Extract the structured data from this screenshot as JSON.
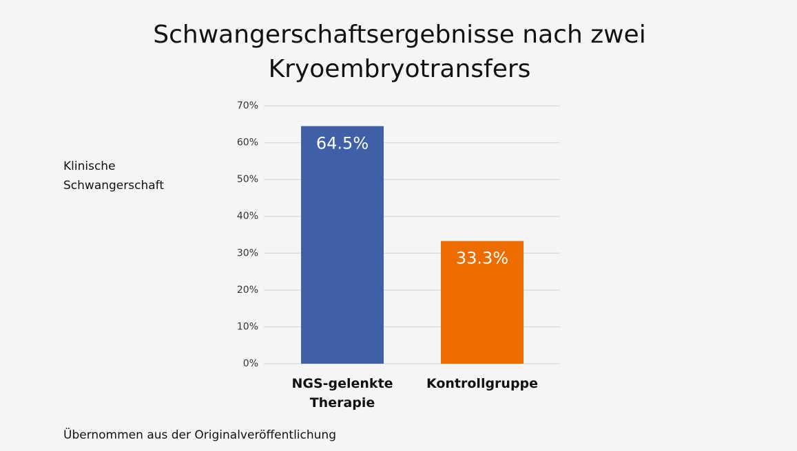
{
  "chart_data": {
    "type": "bar",
    "title": "Schwangerschaftsergebnisse nach zwei Kryoembryotransfers",
    "y_label": "Klinische Schwangerschaft",
    "source": "Übernommen aus der Originalveröffentlichung",
    "categories": [
      "NGS-gelenkte Therapie",
      "Kontrollgruppe"
    ],
    "values": [
      64.5,
      33.3
    ],
    "value_labels": [
      "64.5%",
      "33.3%"
    ],
    "colors": [
      "#3f5fa6",
      "#ec6c00"
    ],
    "ylim": [
      0,
      70
    ],
    "yticks": [
      {
        "value": 0,
        "label": "0%"
      },
      {
        "value": 10,
        "label": "10%"
      },
      {
        "value": 20,
        "label": "20%"
      },
      {
        "value": 30,
        "label": "30%"
      },
      {
        "value": 40,
        "label": "40%"
      },
      {
        "value": 50,
        "label": "50%"
      },
      {
        "value": 60,
        "label": "60%"
      },
      {
        "value": 70,
        "label": "70%"
      }
    ],
    "grid": true
  }
}
